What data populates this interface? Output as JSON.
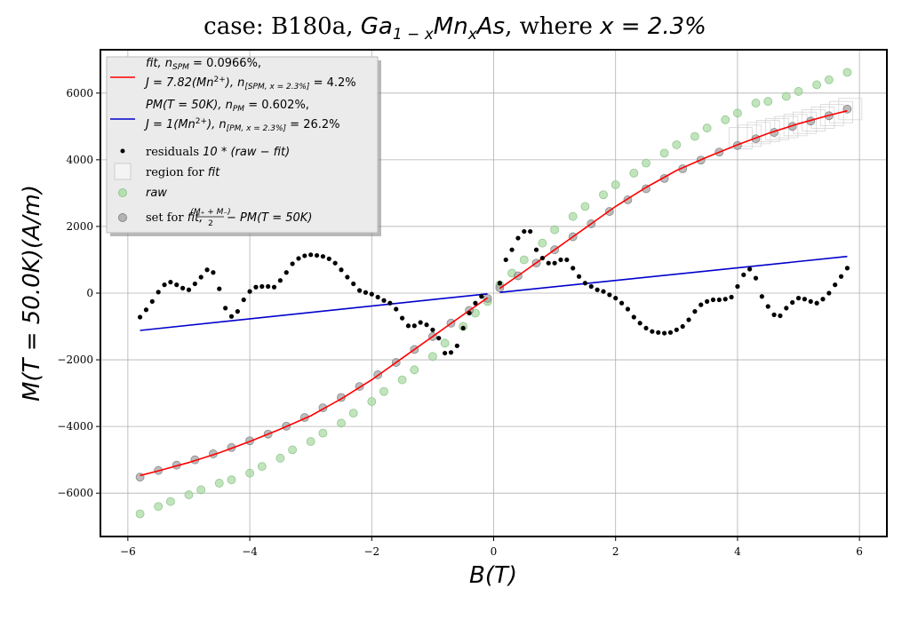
{
  "chart_data": {
    "type": "scatter",
    "title_plain": "case: B180a, ",
    "title_math": "Ga1−xMnxAs",
    "title_tail": ", where ",
    "title_x": "x = 2.3%",
    "xlabel": "B(T)",
    "ylabel": "M(T = 50.0K)(A/m)",
    "xlim": [
      -6.45,
      6.45
    ],
    "ylim": [
      -7300,
      7300
    ],
    "x_ticks": [
      -6,
      -4,
      -2,
      0,
      2,
      4,
      6
    ],
    "x_tick_labels": [
      "−6",
      "−4",
      "−2",
      "0",
      "2",
      "4",
      "6"
    ],
    "y_ticks": [
      -6000,
      -4000,
      -2000,
      0,
      2000,
      4000,
      6000
    ],
    "y_tick_labels": [
      "−6000",
      "−4000",
      "−2000",
      "0",
      "2000",
      "4000",
      "6000"
    ],
    "grid": true,
    "legend_position": "top-left",
    "legend": {
      "fit_line1_a": "fit",
      "fit_line1_b": ", n",
      "fit_line1_sub": "SPM",
      "fit_line1_c": " = 0.0966%,",
      "fit_line2_a": "J = 7.82(Mn",
      "fit_line2_sup": "2+",
      "fit_line2_b": "), n",
      "fit_line2_sub": "[SPM, x = 2.3%]",
      "fit_line2_c": " = 4.2%",
      "pm_line1_a": "PM(T = 50K), n",
      "pm_line1_sub": "PM",
      "pm_line1_b": " = 0.602%,",
      "pm_line2_a": "J = 1(Mn",
      "pm_line2_sup": "2+",
      "pm_line2_b": "), n",
      "pm_line2_sub": "[PM, x = 2.3%]",
      "pm_line2_c": " = 26.2%",
      "residuals_a": "residuals ",
      "residuals_b": "10 * (raw − fit)",
      "region_a": "region for ",
      "region_b": "fit",
      "raw": "raw",
      "set_a": "set for ",
      "set_b": "fit, ",
      "set_frac_num": "(M₊ + M₋)",
      "set_frac_den": "2",
      "set_c": " − PM(T = 50K)"
    },
    "colors": {
      "fit": "#ff0000",
      "pm": "#0000cc",
      "raw": "#a8d8a0",
      "set": "#a0a0a0",
      "residuals": "#000000",
      "region": "#cccccc"
    },
    "fit_pos": {
      "x": [
        0.1,
        0.5,
        1.0,
        1.5,
        2.0,
        2.5,
        3.0,
        3.5,
        4.0,
        4.5,
        5.0,
        5.5,
        5.8
      ],
      "y": [
        140,
        650,
        1300,
        1950,
        2600,
        3170,
        3680,
        4080,
        4450,
        4790,
        5080,
        5330,
        5470
      ]
    },
    "fit_neg": {
      "x": [
        -0.1,
        -0.5,
        -1.0,
        -1.5,
        -2.0,
        -2.5,
        -3.0,
        -3.5,
        -4.0,
        -4.5,
        -5.0,
        -5.5,
        -5.8
      ],
      "y": [
        -140,
        -650,
        -1300,
        -1950,
        -2600,
        -3170,
        -3680,
        -4080,
        -4450,
        -4790,
        -5080,
        -5330,
        -5470
      ]
    },
    "pm_pos": {
      "x": [
        0.1,
        5.8
      ],
      "y": [
        20,
        1100
      ]
    },
    "pm_neg": {
      "x": [
        -0.1,
        -5.8
      ],
      "y": [
        -20,
        -1120
      ]
    },
    "raw_points": {
      "x": [
        0.1,
        0.3,
        0.5,
        0.8,
        1.0,
        1.3,
        1.5,
        1.8,
        2.0,
        2.3,
        2.5,
        2.8,
        3.0,
        3.3,
        3.5,
        3.8,
        4.0,
        4.3,
        4.5,
        4.8,
        5.0,
        5.3,
        5.5,
        5.8,
        -0.1,
        -0.3,
        -0.5,
        -0.8,
        -1.0,
        -1.3,
        -1.5,
        -1.8,
        -2.0,
        -2.3,
        -2.5,
        -2.8,
        -3.0,
        -3.3,
        -3.5,
        -3.8,
        -4.0,
        -4.3,
        -4.5,
        -4.8,
        -5.0,
        -5.3,
        -5.5,
        -5.8
      ],
      "y": [
        250,
        600,
        1000,
        1500,
        1900,
        2300,
        2600,
        2950,
        3250,
        3600,
        3900,
        4200,
        4450,
        4700,
        4950,
        5200,
        5400,
        5700,
        5750,
        5900,
        6050,
        6250,
        6400,
        6620,
        -250,
        -600,
        -1000,
        -1500,
        -1900,
        -2300,
        -2600,
        -2950,
        -3250,
        -3600,
        -3900,
        -4200,
        -4450,
        -4700,
        -4950,
        -5200,
        -5400,
        -5600,
        -5700,
        -5900,
        -6050,
        -6250,
        -6400,
        -6620
      ]
    },
    "set_points": {
      "x": [
        0.1,
        0.4,
        0.7,
        1.0,
        1.3,
        1.6,
        1.9,
        2.2,
        2.5,
        2.8,
        3.1,
        3.4,
        3.7,
        4.0,
        4.3,
        4.6,
        4.9,
        5.2,
        5.5,
        5.8,
        -0.1,
        -0.4,
        -0.7,
        -1.0,
        -1.3,
        -1.6,
        -1.9,
        -2.2,
        -2.5,
        -2.8,
        -3.1,
        -3.4,
        -3.7,
        -4.0,
        -4.3,
        -4.6,
        -4.9,
        -5.2,
        -5.5,
        -5.8
      ],
      "y": [
        160,
        520,
        900,
        1300,
        1690,
        2080,
        2450,
        2800,
        3130,
        3440,
        3730,
        3990,
        4230,
        4430,
        4630,
        4820,
        5000,
        5160,
        5320,
        5520,
        -160,
        -520,
        -900,
        -1300,
        -1690,
        -2080,
        -2450,
        -2800,
        -3130,
        -3440,
        -3730,
        -3990,
        -4230,
        -4430,
        -4630,
        -4820,
        -5000,
        -5160,
        -5320,
        -5520
      ]
    },
    "region_boxes": {
      "x": [
        4.05,
        4.2,
        4.35,
        4.5,
        4.65,
        4.8,
        4.95,
        5.1,
        5.25,
        5.4,
        5.55,
        5.7,
        5.85
      ],
      "y": [
        4650,
        4720,
        4800,
        4860,
        4920,
        4980,
        5040,
        5110,
        5180,
        5260,
        5340,
        5430,
        5520
      ]
    },
    "residuals": {
      "x": [
        -5.8,
        -5.7,
        -5.6,
        -5.5,
        -5.4,
        -5.3,
        -5.2,
        -5.1,
        -5.0,
        -4.9,
        -4.8,
        -4.7,
        -4.6,
        -4.5,
        -4.4,
        -4.3,
        -4.2,
        -4.1,
        -4.0,
        -3.9,
        -3.8,
        -3.7,
        -3.6,
        -3.5,
        -3.4,
        -3.3,
        -3.2,
        -3.1,
        -3.0,
        -2.9,
        -2.8,
        -2.7,
        -2.6,
        -2.5,
        -2.4,
        -2.3,
        -2.2,
        -2.1,
        -2.0,
        -1.9,
        -1.8,
        -1.7,
        -1.6,
        -1.5,
        -1.4,
        -1.3,
        -1.2,
        -1.1,
        -1.0,
        -0.9,
        -0.8,
        -0.7,
        -0.6,
        -0.5,
        -0.4,
        -0.3,
        -0.2,
        0.1,
        0.2,
        0.3,
        0.4,
        0.5,
        0.6,
        0.7,
        0.8,
        0.9,
        1.0,
        1.1,
        1.2,
        1.3,
        1.4,
        1.5,
        1.6,
        1.7,
        1.8,
        1.9,
        2.0,
        2.1,
        2.2,
        2.3,
        2.4,
        2.5,
        2.6,
        2.7,
        2.8,
        2.9,
        3.0,
        3.1,
        3.2,
        3.3,
        3.4,
        3.5,
        3.6,
        3.7,
        3.8,
        3.9,
        4.0,
        4.1,
        4.2,
        4.3,
        4.4,
        4.5,
        4.6,
        4.7,
        4.8,
        4.9,
        5.0,
        5.1,
        5.2,
        5.3,
        5.4,
        5.5,
        5.6,
        5.7,
        5.8
      ],
      "y": [
        -720,
        -500,
        -250,
        30,
        250,
        330,
        250,
        150,
        100,
        280,
        480,
        700,
        620,
        130,
        -450,
        -700,
        -550,
        -200,
        50,
        180,
        200,
        200,
        180,
        380,
        620,
        880,
        1040,
        1120,
        1150,
        1130,
        1100,
        1030,
        900,
        700,
        480,
        280,
        80,
        20,
        -30,
        -120,
        -220,
        -300,
        -480,
        -750,
        -980,
        -980,
        -880,
        -950,
        -1100,
        -1350,
        -1800,
        -1780,
        -1580,
        -1050,
        -600,
        -300,
        -100,
        300,
        1000,
        1300,
        1650,
        1850,
        1850,
        1300,
        1050,
        900,
        900,
        1000,
        1000,
        750,
        500,
        300,
        200,
        100,
        50,
        -50,
        -150,
        -300,
        -480,
        -720,
        -900,
        -1050,
        -1150,
        -1180,
        -1200,
        -1180,
        -1100,
        -1000,
        -800,
        -550,
        -350,
        -250,
        -200,
        -200,
        -180,
        -120,
        200,
        550,
        720,
        450,
        -100,
        -400,
        -650,
        -680,
        -450,
        -280,
        -150,
        -180,
        -250,
        -300,
        -180,
        0,
        250,
        500,
        750
      ]
    }
  }
}
